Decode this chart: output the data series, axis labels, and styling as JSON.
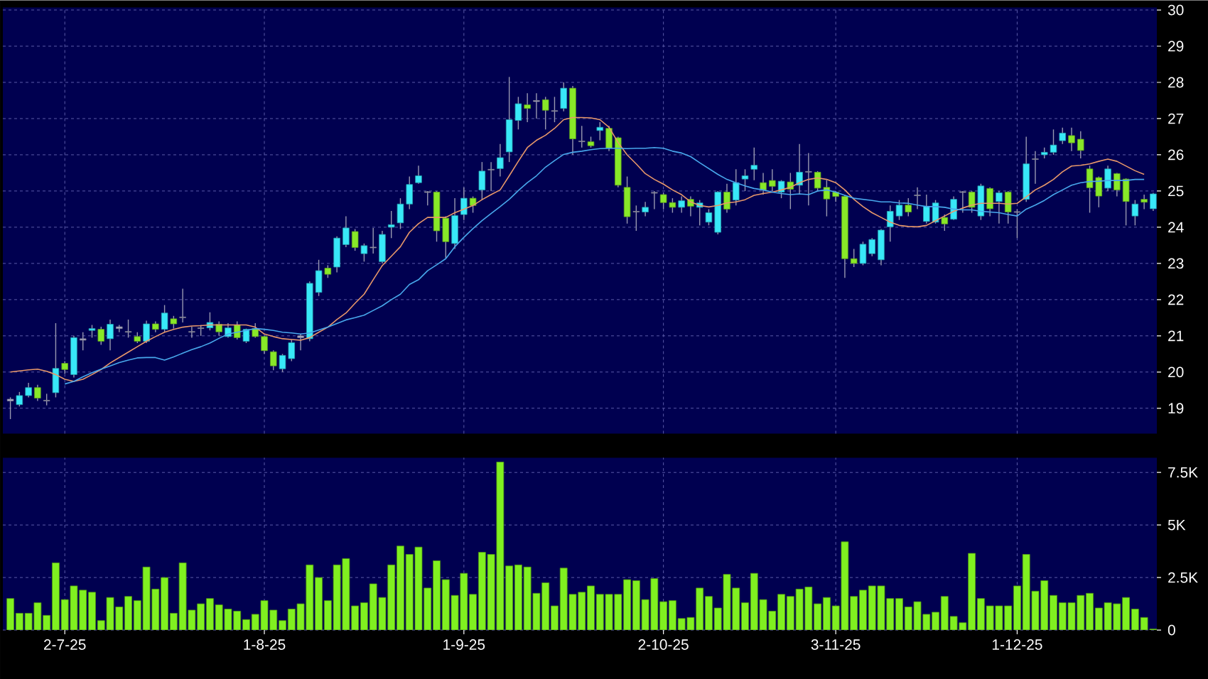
{
  "chart_data": [
    {
      "type": "candlestick",
      "categories": [
        null,
        null,
        null,
        null,
        null,
        null,
        null,
        null,
        null,
        null,
        null,
        null,
        null,
        null,
        null,
        null,
        null,
        null,
        null,
        null,
        null,
        null,
        null,
        null,
        null,
        null,
        null,
        null,
        null,
        null,
        null,
        null,
        null,
        null,
        null,
        null,
        null,
        null,
        null,
        null,
        null,
        null,
        null,
        null,
        null,
        null,
        null,
        null,
        null,
        null,
        null,
        null,
        null,
        null,
        null,
        null,
        null,
        null,
        null,
        null,
        null,
        null,
        null,
        null,
        null,
        null,
        null,
        null,
        null,
        null,
        null,
        null,
        null,
        null,
        null,
        null,
        null,
        null,
        null,
        null,
        null,
        null,
        null,
        null,
        null,
        null,
        null,
        null,
        null,
        null,
        null,
        null,
        null,
        null,
        null,
        null,
        null,
        null,
        null,
        null,
        null,
        null,
        null,
        null,
        null,
        null,
        null,
        null,
        null,
        null,
        null,
        null,
        null,
        null,
        null,
        null,
        null,
        null,
        null,
        null,
        null,
        null,
        null,
        null,
        null,
        null,
        null
      ],
      "ohlc": [
        [
          19.2,
          19.3,
          18.7,
          19.25
        ],
        [
          19.1,
          19.45,
          19.05,
          19.35
        ],
        [
          19.35,
          19.7,
          19.3,
          19.57
        ],
        [
          19.57,
          19.65,
          19.2,
          19.28
        ],
        [
          19.2,
          19.4,
          19.08,
          19.22
        ],
        [
          19.43,
          21.35,
          19.3,
          20.1
        ],
        [
          20.24,
          20.3,
          19.95,
          20.07
        ],
        [
          19.93,
          21.0,
          19.85,
          20.95
        ],
        [
          20.88,
          21.1,
          20.6,
          20.92
        ],
        [
          21.15,
          21.3,
          20.95,
          21.2
        ],
        [
          21.18,
          21.25,
          20.75,
          20.85
        ],
        [
          20.92,
          21.45,
          20.6,
          21.32
        ],
        [
          21.25,
          21.3,
          21.1,
          21.2
        ],
        [
          21.12,
          21.45,
          20.95,
          21.1
        ],
        [
          20.98,
          21.1,
          20.8,
          20.85
        ],
        [
          20.85,
          21.42,
          20.8,
          21.33
        ],
        [
          21.33,
          21.4,
          21.1,
          21.18
        ],
        [
          21.18,
          21.85,
          21.1,
          21.63
        ],
        [
          21.47,
          21.55,
          21.2,
          21.33
        ],
        [
          21.5,
          22.3,
          21.37,
          21.52
        ],
        [
          21.1,
          21.25,
          20.95,
          21.12
        ],
        [
          21.2,
          21.3,
          21.0,
          21.22
        ],
        [
          21.22,
          21.65,
          21.15,
          21.37
        ],
        [
          21.32,
          21.4,
          21.0,
          21.11
        ],
        [
          20.98,
          21.35,
          20.95,
          21.22
        ],
        [
          21.3,
          21.4,
          20.9,
          20.95
        ],
        [
          20.85,
          21.2,
          20.8,
          21.18
        ],
        [
          21.2,
          21.35,
          20.95,
          20.98
        ],
        [
          20.98,
          21.0,
          20.5,
          20.59
        ],
        [
          20.56,
          20.6,
          20.05,
          20.17
        ],
        [
          20.09,
          20.5,
          20.0,
          20.46
        ],
        [
          20.37,
          20.9,
          20.3,
          20.81
        ],
        [
          20.95,
          21.05,
          20.6,
          21.0
        ],
        [
          20.92,
          22.5,
          20.85,
          22.45
        ],
        [
          22.2,
          23.1,
          22.1,
          22.8
        ],
        [
          22.87,
          22.95,
          22.6,
          22.7
        ],
        [
          22.9,
          23.75,
          22.75,
          23.7
        ],
        [
          23.52,
          24.3,
          23.45,
          23.98
        ],
        [
          23.88,
          23.95,
          23.35,
          23.44
        ],
        [
          23.27,
          23.55,
          23.05,
          23.49
        ],
        [
          23.43,
          23.98,
          23.27,
          23.45
        ],
        [
          23.05,
          23.9,
          23.0,
          23.8
        ],
        [
          24.0,
          24.45,
          23.7,
          24.07
        ],
        [
          24.12,
          24.8,
          23.95,
          24.64
        ],
        [
          24.64,
          25.4,
          24.5,
          25.18
        ],
        [
          25.23,
          25.7,
          25.2,
          25.42
        ],
        [
          24.96,
          25.0,
          24.6,
          24.98
        ],
        [
          24.97,
          25.0,
          23.6,
          23.9
        ],
        [
          24.25,
          24.3,
          23.15,
          23.6
        ],
        [
          23.55,
          24.8,
          23.4,
          24.32
        ],
        [
          24.35,
          25.1,
          24.2,
          24.8
        ],
        [
          24.8,
          24.85,
          24.4,
          24.6
        ],
        [
          25.03,
          25.8,
          24.75,
          25.55
        ],
        [
          25.58,
          25.8,
          25.0,
          25.6
        ],
        [
          25.62,
          26.3,
          25.4,
          25.92
        ],
        [
          26.08,
          28.15,
          25.8,
          26.97
        ],
        [
          26.95,
          27.6,
          26.7,
          27.41
        ],
        [
          27.38,
          27.7,
          26.9,
          27.28
        ],
        [
          27.47,
          27.7,
          27.0,
          27.5
        ],
        [
          27.52,
          27.6,
          26.7,
          27.23
        ],
        [
          27.2,
          27.6,
          26.9,
          27.22
        ],
        [
          27.28,
          28.0,
          27.2,
          27.84
        ],
        [
          27.84,
          27.9,
          26.0,
          26.44
        ],
        [
          26.36,
          26.8,
          26.2,
          26.38
        ],
        [
          26.36,
          26.5,
          26.2,
          26.25
        ],
        [
          26.67,
          26.9,
          26.4,
          26.76
        ],
        [
          26.73,
          26.8,
          26.1,
          26.18
        ],
        [
          26.47,
          26.5,
          25.1,
          25.16
        ],
        [
          25.1,
          25.4,
          24.1,
          24.29
        ],
        [
          24.42,
          24.6,
          23.9,
          24.44
        ],
        [
          24.42,
          24.7,
          24.3,
          24.55
        ],
        [
          24.94,
          25.0,
          24.5,
          24.96
        ],
        [
          24.9,
          24.95,
          24.5,
          24.68
        ],
        [
          24.68,
          24.8,
          24.4,
          24.55
        ],
        [
          24.55,
          24.85,
          24.4,
          24.73
        ],
        [
          24.77,
          24.85,
          24.3,
          24.58
        ],
        [
          24.55,
          24.75,
          24.05,
          24.67
        ],
        [
          24.14,
          24.5,
          24.05,
          24.4
        ],
        [
          23.86,
          25.0,
          23.8,
          24.97
        ],
        [
          24.97,
          25.2,
          24.4,
          24.5
        ],
        [
          24.75,
          25.6,
          24.6,
          25.23
        ],
        [
          25.33,
          25.6,
          25.0,
          25.42
        ],
        [
          25.6,
          26.2,
          25.3,
          25.71
        ],
        [
          25.23,
          25.5,
          24.9,
          25.03
        ],
        [
          25.29,
          25.6,
          25.0,
          25.13
        ],
        [
          24.97,
          25.3,
          24.8,
          25.27
        ],
        [
          25.25,
          25.5,
          24.5,
          25.05
        ],
        [
          25.16,
          26.3,
          24.9,
          25.52
        ],
        [
          25.52,
          26.05,
          24.6,
          25.54
        ],
        [
          25.52,
          25.55,
          25.0,
          25.08
        ],
        [
          25.1,
          25.3,
          24.3,
          24.78
        ],
        [
          24.97,
          25.0,
          24.7,
          24.85
        ],
        [
          24.85,
          24.9,
          22.6,
          23.13
        ],
        [
          23.13,
          23.4,
          22.9,
          23.0
        ],
        [
          23.0,
          23.6,
          22.95,
          23.53
        ],
        [
          23.27,
          23.7,
          23.2,
          23.66
        ],
        [
          23.1,
          23.95,
          22.95,
          23.92
        ],
        [
          24.01,
          24.6,
          23.6,
          24.44
        ],
        [
          24.31,
          24.75,
          24.2,
          24.61
        ],
        [
          24.61,
          24.8,
          24.3,
          24.42
        ],
        [
          24.87,
          25.1,
          24.5,
          24.89
        ],
        [
          24.16,
          24.9,
          24.1,
          24.58
        ],
        [
          24.14,
          24.75,
          24.1,
          24.67
        ],
        [
          24.27,
          24.35,
          23.9,
          24.09
        ],
        [
          24.22,
          24.85,
          24.2,
          24.77
        ],
        [
          24.96,
          25.0,
          24.4,
          24.98
        ],
        [
          24.97,
          25.0,
          24.4,
          24.55
        ],
        [
          24.31,
          25.2,
          24.2,
          25.14
        ],
        [
          25.07,
          25.1,
          24.3,
          24.51
        ],
        [
          24.71,
          25.0,
          24.1,
          24.95
        ],
        [
          24.97,
          25.0,
          24.1,
          24.42
        ],
        [
          24.43,
          24.5,
          23.7,
          24.41
        ],
        [
          24.77,
          26.5,
          24.7,
          25.75
        ],
        [
          25.87,
          26.1,
          25.2,
          25.89
        ],
        [
          26.0,
          26.2,
          25.9,
          26.07
        ],
        [
          26.07,
          26.7,
          26.0,
          26.27
        ],
        [
          26.39,
          26.75,
          26.3,
          26.6
        ],
        [
          26.53,
          26.75,
          26.1,
          26.33
        ],
        [
          26.43,
          26.65,
          25.9,
          26.12
        ],
        [
          25.61,
          25.7,
          24.4,
          25.09
        ],
        [
          25.37,
          25.4,
          24.55,
          24.86
        ],
        [
          25.08,
          25.7,
          25.0,
          25.61
        ],
        [
          25.48,
          25.5,
          24.85,
          25.03
        ],
        [
          25.33,
          25.35,
          24.05,
          24.71
        ],
        [
          24.31,
          24.75,
          24.05,
          24.64
        ],
        [
          24.77,
          24.9,
          24.5,
          24.69
        ],
        [
          24.51,
          24.95,
          24.45,
          24.92
        ]
      ],
      "colors": [
        "#b0b0c8",
        "#38e8f8",
        "#38e8f8",
        "#88e828",
        "#b0b0c8",
        "#38e8f8",
        "#88e828",
        "#38e8f8",
        "#b0b0c8",
        "#38e8f8",
        "#88e828",
        "#38e8f8",
        "#b0b0c8",
        "#b0b0c8",
        "#88e828",
        "#38e8f8",
        "#88e828",
        "#38e8f8",
        "#88e828",
        "#b0b0c8",
        "#b0b0c8",
        "#b0b0c8",
        "#38e8f8",
        "#88e828",
        "#38e8f8",
        "#88e828",
        "#38e8f8",
        "#88e828",
        "#88e828",
        "#88e828",
        "#38e8f8",
        "#38e8f8",
        "#b0b0c8",
        "#38e8f8",
        "#38e8f8",
        "#88e828",
        "#38e8f8",
        "#38e8f8",
        "#88e828",
        "#38e8f8",
        "#b0b0c8",
        "#38e8f8",
        "#38e8f8",
        "#38e8f8",
        "#38e8f8",
        "#38e8f8",
        "#b0b0c8",
        "#88e828",
        "#88e828",
        "#38e8f8",
        "#38e8f8",
        "#88e828",
        "#38e8f8",
        "#b0b0c8",
        "#38e8f8",
        "#38e8f8",
        "#38e8f8",
        "#88e828",
        "#b0b0c8",
        "#88e828",
        "#b0b0c8",
        "#38e8f8",
        "#88e828",
        "#b0b0c8",
        "#88e828",
        "#38e8f8",
        "#88e828",
        "#88e828",
        "#88e828",
        "#b0b0c8",
        "#38e8f8",
        "#b0b0c8",
        "#88e828",
        "#88e828",
        "#38e8f8",
        "#88e828",
        "#38e8f8",
        "#38e8f8",
        "#38e8f8",
        "#88e828",
        "#38e8f8",
        "#38e8f8",
        "#38e8f8",
        "#88e828",
        "#88e828",
        "#38e8f8",
        "#88e828",
        "#38e8f8",
        "#b0b0c8",
        "#88e828",
        "#88e828",
        "#88e828",
        "#88e828",
        "#88e828",
        "#38e8f8",
        "#38e8f8",
        "#38e8f8",
        "#38e8f8",
        "#38e8f8",
        "#88e828",
        "#b0b0c8",
        "#38e8f8",
        "#38e8f8",
        "#88e828",
        "#38e8f8",
        "#b0b0c8",
        "#88e828",
        "#38e8f8",
        "#88e828",
        "#38e8f8",
        "#88e828",
        "#b0b0c8",
        "#38e8f8",
        "#b0b0c8",
        "#38e8f8",
        "#38e8f8",
        "#38e8f8",
        "#88e828",
        "#88e828",
        "#88e828",
        "#88e828",
        "#38e8f8",
        "#88e828",
        "#88e828",
        "#38e8f8",
        "#88e828",
        "#38e8f8"
      ],
      "series": [
        {
          "type": "line",
          "color": "#e8986a",
          "values": [
            20.0,
            20.03,
            20.06,
            20.08,
            20.02,
            19.93,
            19.8,
            19.74,
            19.8,
            19.93,
            20.07,
            20.25,
            20.4,
            20.55,
            20.7,
            20.85,
            20.98,
            21.1,
            21.18,
            21.24,
            21.27,
            21.28,
            21.3,
            21.3,
            21.3,
            21.3,
            21.3,
            21.24,
            21.05,
            20.98,
            20.92,
            20.9,
            20.88,
            20.95,
            21.1,
            21.24,
            21.45,
            21.63,
            21.9,
            22.15,
            22.55,
            22.94,
            23.2,
            23.46,
            23.86,
            24.1,
            24.27,
            24.27,
            24.27,
            24.4,
            24.5,
            24.6,
            24.76,
            24.9,
            25.03,
            25.42,
            25.82,
            26.2,
            26.4,
            26.54,
            26.73,
            26.97,
            27.03,
            27.03,
            27.02,
            26.97,
            26.76,
            26.34,
            26.0,
            25.75,
            25.48,
            25.32,
            25.19,
            25.03,
            24.9,
            24.7,
            24.6,
            24.56,
            24.6,
            24.67,
            24.7,
            24.76,
            24.88,
            24.93,
            24.97,
            25.03,
            25.1,
            25.23,
            25.32,
            25.36,
            25.32,
            25.23,
            25.03,
            24.77,
            24.57,
            24.4,
            24.27,
            24.14,
            24.05,
            24.02,
            24.01,
            24.05,
            24.18,
            24.31,
            24.44,
            24.53,
            24.61,
            24.66,
            24.66,
            24.66,
            24.64,
            24.66,
            24.84,
            25.03,
            25.16,
            25.32,
            25.53,
            25.69,
            25.71,
            25.75,
            25.82,
            25.88,
            25.82,
            25.69,
            25.56,
            25.46,
            null
          ]
        },
        {
          "type": "line",
          "color": "#48a8ec",
          "values": [
            null,
            null,
            null,
            null,
            null,
            null,
            19.67,
            19.74,
            19.87,
            19.98,
            20.08,
            20.17,
            20.26,
            20.33,
            20.39,
            20.4,
            20.4,
            20.33,
            20.42,
            20.52,
            20.62,
            20.7,
            20.8,
            20.93,
            21.05,
            21.1,
            21.15,
            21.2,
            21.18,
            21.15,
            21.1,
            21.08,
            21.05,
            21.08,
            21.16,
            21.24,
            21.34,
            21.44,
            21.5,
            21.57,
            21.7,
            21.83,
            22.0,
            22.15,
            22.42,
            22.55,
            22.8,
            22.96,
            23.13,
            23.46,
            23.72,
            23.96,
            24.18,
            24.38,
            24.57,
            24.77,
            25.01,
            25.23,
            25.42,
            25.66,
            25.84,
            26.01,
            26.07,
            26.1,
            26.14,
            26.17,
            26.18,
            26.18,
            26.17,
            26.18,
            26.18,
            26.2,
            26.18,
            26.1,
            26.05,
            25.95,
            25.78,
            25.62,
            25.46,
            25.32,
            25.23,
            25.14,
            25.07,
            25.03,
            24.97,
            24.93,
            24.9,
            24.92,
            24.9,
            25.0,
            25.03,
            24.97,
            24.88,
            24.8,
            24.77,
            24.74,
            24.7,
            24.7,
            24.67,
            24.66,
            24.61,
            24.57,
            24.57,
            24.55,
            24.5,
            24.48,
            24.48,
            24.44,
            24.42,
            24.4,
            24.35,
            24.31,
            24.5,
            24.61,
            24.74,
            24.9,
            25.03,
            25.16,
            25.23,
            25.26,
            25.27,
            25.29,
            25.29,
            25.29,
            25.32,
            25.32,
            null
          ]
        }
      ],
      "ylim": [
        18.3,
        30.07
      ],
      "yticks": [
        19,
        20,
        21,
        22,
        23,
        24,
        25,
        26,
        27,
        28,
        29,
        30
      ],
      "grid": true,
      "tick_labels": "y"
    },
    {
      "type": "bar",
      "categories": [
        null,
        null,
        null,
        null,
        null,
        null,
        "2-7-25",
        null,
        null,
        null,
        null,
        null,
        null,
        null,
        null,
        null,
        null,
        null,
        null,
        null,
        null,
        null,
        null,
        null,
        null,
        null,
        null,
        null,
        "1-8-25",
        null,
        null,
        null,
        null,
        null,
        null,
        null,
        null,
        null,
        null,
        null,
        null,
        null,
        null,
        null,
        null,
        null,
        null,
        null,
        null,
        null,
        "1-9-25",
        null,
        null,
        null,
        null,
        null,
        null,
        null,
        null,
        null,
        null,
        null,
        null,
        null,
        null,
        null,
        null,
        null,
        null,
        null,
        null,
        null,
        "2-10-25",
        null,
        null,
        null,
        null,
        null,
        null,
        null,
        null,
        null,
        null,
        null,
        null,
        null,
        null,
        null,
        null,
        null,
        null,
        "3-11-25",
        null,
        null,
        null,
        null,
        null,
        null,
        null,
        null,
        null,
        null,
        null,
        null,
        null,
        null,
        null,
        null,
        null,
        null,
        null,
        "1-12-25",
        null,
        null,
        null,
        null,
        null,
        null,
        null,
        null,
        null,
        null,
        null,
        null,
        null,
        null,
        null
      ],
      "values": [
        1.5,
        0.8,
        0.8,
        1.3,
        0.7,
        3.2,
        1.45,
        2.1,
        1.9,
        1.8,
        0.45,
        1.55,
        1.1,
        1.6,
        1.4,
        3.0,
        1.95,
        2.5,
        0.8,
        3.2,
        0.95,
        1.25,
        1.5,
        1.2,
        1.0,
        0.9,
        0.5,
        0.75,
        1.4,
        0.95,
        0.45,
        1.0,
        1.25,
        3.1,
        2.5,
        1.4,
        3.1,
        3.4,
        1.15,
        1.3,
        2.2,
        1.55,
        3.1,
        4.0,
        3.6,
        3.95,
        2.0,
        3.3,
        2.4,
        1.65,
        2.7,
        1.7,
        3.7,
        3.6,
        8.0,
        3.05,
        3.1,
        3.0,
        1.75,
        2.25,
        1.15,
        2.95,
        1.7,
        1.8,
        2.1,
        1.7,
        1.7,
        1.7,
        2.4,
        2.35,
        1.45,
        2.45,
        1.35,
        1.4,
        0.55,
        0.6,
        2.0,
        1.6,
        1.05,
        2.65,
        2.0,
        1.3,
        2.7,
        1.45,
        0.9,
        1.7,
        1.6,
        1.95,
        2.05,
        1.25,
        1.55,
        1.15,
        4.2,
        1.6,
        1.9,
        2.1,
        2.1,
        1.5,
        1.5,
        1.1,
        1.35,
        0.75,
        0.85,
        1.6,
        0.65,
        0.35,
        3.65,
        1.5,
        1.15,
        1.15,
        1.15,
        2.1,
        3.6,
        1.85,
        2.35,
        1.65,
        1.3,
        1.3,
        1.65,
        1.75,
        1.05,
        1.3,
        1.25,
        1.55,
        1.0,
        0.6,
        0.05
      ],
      "color": "#80f020",
      "ylim": [
        0,
        8.2
      ],
      "yticks": [
        0,
        {
          "value": 2.5,
          "label": "2.5K"
        },
        {
          "value": 5,
          "label": "5K"
        },
        {
          "value": 7.5,
          "label": "7.5K"
        }
      ],
      "grid": true
    }
  ]
}
